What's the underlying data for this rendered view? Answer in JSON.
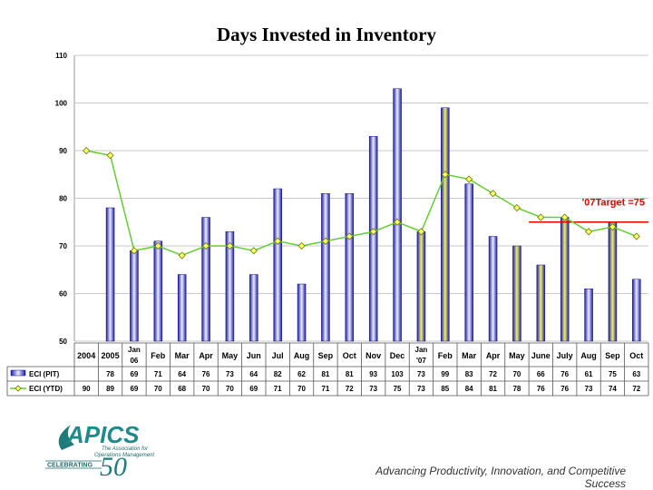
{
  "title": "Days Invested in Inventory",
  "footer": "Advancing Productivity, Innovation, and Competitive Success",
  "logo": {
    "name": "APICS",
    "tagline_1": "The Association for",
    "tagline_2": "Operations Management",
    "celebrating": "CELEBRATING",
    "number": "50"
  },
  "chart_data": {
    "type": "bar",
    "title": "Days Invested in Inventory",
    "ylim": [
      50,
      110
    ],
    "yticks": [
      50,
      60,
      70,
      80,
      90,
      100,
      110
    ],
    "categories": [
      "2004",
      "2005",
      "Jan '06",
      "Feb",
      "Mar",
      "Apr",
      "May",
      "Jun",
      "Jul",
      "Aug",
      "Sep",
      "Oct",
      "Nov",
      "Dec",
      "Jan '07",
      "Feb",
      "Mar",
      "Apr",
      "May",
      "June",
      "July",
      "Aug",
      "Sep",
      "Oct"
    ],
    "category_lines": [
      [
        "2004"
      ],
      [
        "2005"
      ],
      [
        "Jan",
        "06"
      ],
      [
        "Feb"
      ],
      [
        "Mar"
      ],
      [
        "Apr"
      ],
      [
        "May"
      ],
      [
        "Jun"
      ],
      [
        "Jul"
      ],
      [
        "Aug"
      ],
      [
        "Sep"
      ],
      [
        "Oct"
      ],
      [
        "Nov"
      ],
      [
        "Dec"
      ],
      [
        "Jan",
        "'07"
      ],
      [
        "Feb"
      ],
      [
        "Mar"
      ],
      [
        "Apr"
      ],
      [
        "May"
      ],
      [
        "June"
      ],
      [
        "July"
      ],
      [
        "Aug"
      ],
      [
        "Sep"
      ],
      [
        "Oct"
      ]
    ],
    "series": [
      {
        "name": "ECI (PIT)",
        "kind": "bar",
        "values": [
          null,
          78,
          69,
          71,
          64,
          76,
          73,
          64,
          82,
          62,
          81,
          81,
          93,
          103,
          73,
          99,
          83,
          72,
          70,
          66,
          76,
          61,
          75,
          63
        ],
        "highlight": [
          false,
          false,
          false,
          false,
          false,
          false,
          false,
          false,
          false,
          false,
          false,
          false,
          false,
          false,
          true,
          true,
          false,
          false,
          true,
          true,
          true,
          false,
          true,
          false
        ]
      },
      {
        "name": "ECI (YTD)",
        "kind": "line",
        "values": [
          90,
          89,
          69,
          70,
          68,
          70,
          70,
          69,
          71,
          70,
          71,
          72,
          73,
          75,
          73,
          85,
          84,
          81,
          78,
          76,
          76,
          73,
          74,
          72
        ]
      }
    ],
    "target": {
      "label": "'07Target =75",
      "value": 75,
      "from_index": 19,
      "color": "#e00000"
    },
    "colors": {
      "bar_dark": "#1a1aa8",
      "bar_light": "#eeeeff",
      "highlight": "#f2f26a",
      "line": "#66cc33",
      "marker": "#ffff66"
    }
  }
}
